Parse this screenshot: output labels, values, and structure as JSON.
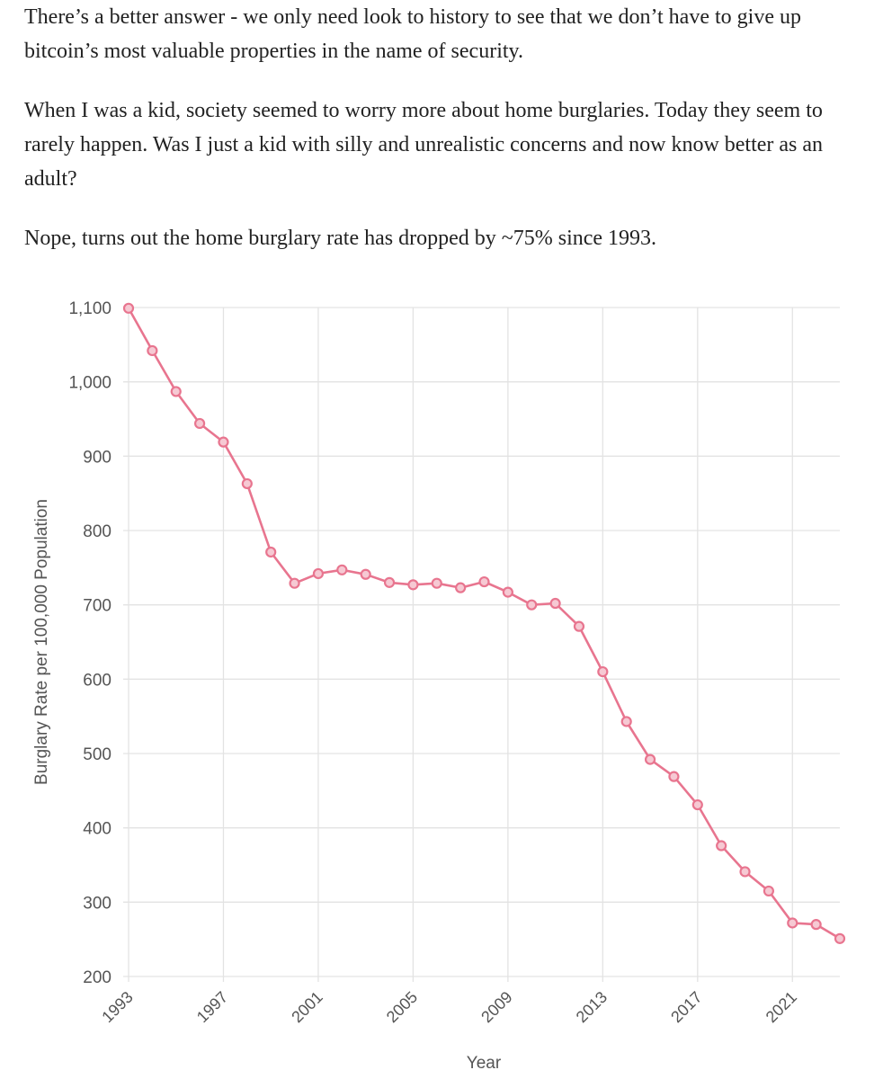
{
  "article": {
    "paragraphs": [
      "There’s a better answer - we only need look to history to see that we don’t have to give up bitcoin’s most valuable properties in the name of security.",
      "When I was a kid, society seemed to worry more about home burglaries. Today they seem to rarely happen. Was I just a kid with silly and unrealistic concerns and now know better as an adult?",
      "Nope, turns out the home burglary rate has dropped by ~75% since 1993."
    ]
  },
  "chart_data": {
    "type": "line",
    "title": "",
    "xlabel": "Year",
    "ylabel": "Burglary Rate per 100,000 Population",
    "xlim": [
      1993,
      2023
    ],
    "ylim": [
      200,
      1100
    ],
    "x_ticks": [
      "1993",
      "1997",
      "2001",
      "2005",
      "2009",
      "2013",
      "2017",
      "2021"
    ],
    "y_ticks": [
      "200",
      "300",
      "400",
      "500",
      "600",
      "700",
      "800",
      "900",
      "1,000",
      "1,100"
    ],
    "y_tick_values": [
      200,
      300,
      400,
      500,
      600,
      700,
      800,
      900,
      1000,
      1100
    ],
    "grid": true,
    "line_color": "#e8758f",
    "series": [
      {
        "name": "Burglary Rate",
        "x": [
          1993,
          1994,
          1995,
          1996,
          1997,
          1998,
          1999,
          2000,
          2001,
          2002,
          2003,
          2004,
          2005,
          2006,
          2007,
          2008,
          2009,
          2010,
          2011,
          2012,
          2013,
          2014,
          2015,
          2016,
          2017,
          2018,
          2019,
          2020,
          2021,
          2022,
          2023
        ],
        "values": [
          1099,
          1042,
          987,
          944,
          919,
          863,
          771,
          729,
          742,
          747,
          741,
          730,
          727,
          729,
          723,
          731,
          717,
          700,
          702,
          671,
          610,
          543,
          492,
          469,
          431,
          376,
          341,
          315,
          272,
          270,
          251
        ]
      }
    ]
  }
}
